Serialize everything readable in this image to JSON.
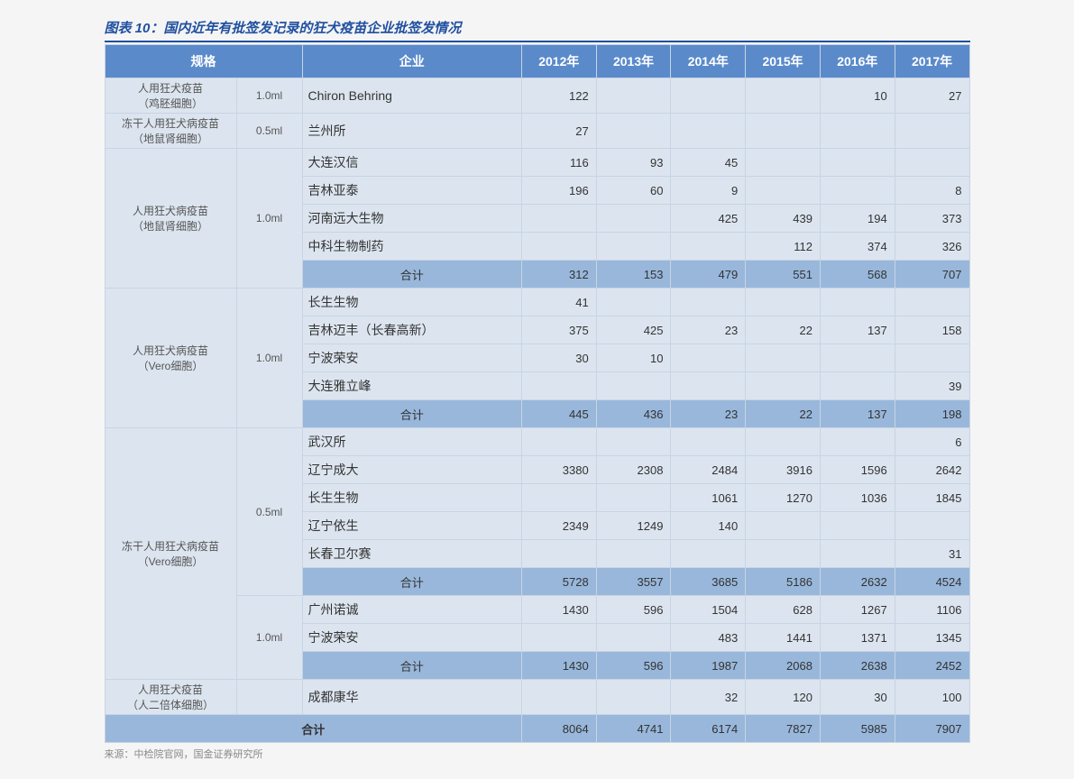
{
  "title": "图表 10：国内近年有批签发记录的狂犬疫苗企业批签发情况",
  "source": "来源：中检院官网，国金证券研究所",
  "colors": {
    "header_bg": "#5a8aca",
    "header_text": "#ffffff",
    "cell_bg": "#dce5ef",
    "subtotal_bg": "#98b7db",
    "border": "#c8d4e4",
    "title": "#2050a0"
  },
  "header": {
    "spec": "规格",
    "company": "企业",
    "y2012": "2012年",
    "y2013": "2013年",
    "y2014": "2014年",
    "y2015": "2015年",
    "y2016": "2016年",
    "y2017": "2017年"
  },
  "groups": [
    {
      "spec": "人用狂犬疫苗\n（鸡胚细胞）",
      "vol": "1.0ml",
      "rows": [
        {
          "company": "Chiron Behring",
          "v": [
            "122",
            "",
            "",
            "",
            "10",
            "27"
          ]
        }
      ]
    },
    {
      "spec": "冻干人用狂犬病疫苗\n（地鼠肾细胞）",
      "vol": "0.5ml",
      "rows": [
        {
          "company": "兰州所",
          "v": [
            "27",
            "",
            "",
            "",
            "",
            ""
          ]
        }
      ]
    },
    {
      "spec": "人用狂犬病疫苗\n（地鼠肾细胞）",
      "vol": "1.0ml",
      "rows": [
        {
          "company": "大连汉信",
          "v": [
            "116",
            "93",
            "45",
            "",
            "",
            ""
          ]
        },
        {
          "company": "吉林亚泰",
          "v": [
            "196",
            "60",
            "9",
            "",
            "",
            "8"
          ]
        },
        {
          "company": "河南远大生物",
          "v": [
            "",
            "",
            "425",
            "439",
            "194",
            "373"
          ]
        },
        {
          "company": "中科生物制药",
          "v": [
            "",
            "",
            "",
            "112",
            "374",
            "326"
          ]
        }
      ],
      "subtotal": {
        "label": "合计",
        "v": [
          "312",
          "153",
          "479",
          "551",
          "568",
          "707"
        ]
      }
    },
    {
      "spec": "人用狂犬病疫苗\n（Vero细胞）",
      "vol": "1.0ml",
      "rows": [
        {
          "company": "长生生物",
          "v": [
            "41",
            "",
            "",
            "",
            "",
            ""
          ]
        },
        {
          "company": "吉林迈丰（长春高新）",
          "v": [
            "375",
            "425",
            "23",
            "22",
            "137",
            "158"
          ]
        },
        {
          "company": "宁波荣安",
          "v": [
            "30",
            "10",
            "",
            "",
            "",
            ""
          ]
        },
        {
          "company": "大连雅立峰",
          "v": [
            "",
            "",
            "",
            "",
            "",
            "39"
          ]
        }
      ],
      "subtotal": {
        "label": "合计",
        "v": [
          "445",
          "436",
          "23",
          "22",
          "137",
          "198"
        ]
      }
    },
    {
      "spec": "冻干人用狂犬病疫苗\n（Vero细胞）",
      "subgroups": [
        {
          "vol": "0.5ml",
          "rows": [
            {
              "company": "武汉所",
              "v": [
                "",
                "",
                "",
                "",
                "",
                "6"
              ]
            },
            {
              "company": "辽宁成大",
              "v": [
                "3380",
                "2308",
                "2484",
                "3916",
                "1596",
                "2642"
              ]
            },
            {
              "company": "长生生物",
              "v": [
                "",
                "",
                "1061",
                "1270",
                "1036",
                "1845"
              ]
            },
            {
              "company": "辽宁依生",
              "v": [
                "2349",
                "1249",
                "140",
                "",
                "",
                ""
              ]
            },
            {
              "company": "长春卫尔赛",
              "v": [
                "",
                "",
                "",
                "",
                "",
                "31"
              ]
            }
          ],
          "subtotal": {
            "label": "合计",
            "v": [
              "5728",
              "3557",
              "3685",
              "5186",
              "2632",
              "4524"
            ]
          }
        },
        {
          "vol": "1.0ml",
          "rows": [
            {
              "company": "广州诺诚",
              "v": [
                "1430",
                "596",
                "1504",
                "628",
                "1267",
                "1106"
              ]
            },
            {
              "company": "宁波荣安",
              "v": [
                "",
                "",
                "483",
                "1441",
                "1371",
                "1345"
              ]
            }
          ],
          "subtotal": {
            "label": "合计",
            "v": [
              "1430",
              "596",
              "1987",
              "2068",
              "2638",
              "2452"
            ]
          }
        }
      ]
    },
    {
      "spec": "人用狂犬疫苗\n（人二倍体细胞）",
      "vol": "",
      "rows": [
        {
          "company": "成都康华",
          "v": [
            "",
            "",
            "32",
            "120",
            "30",
            "100"
          ]
        }
      ]
    }
  ],
  "grand_total": {
    "label": "合计",
    "v": [
      "8064",
      "4741",
      "6174",
      "7827",
      "5985",
      "7907"
    ]
  }
}
